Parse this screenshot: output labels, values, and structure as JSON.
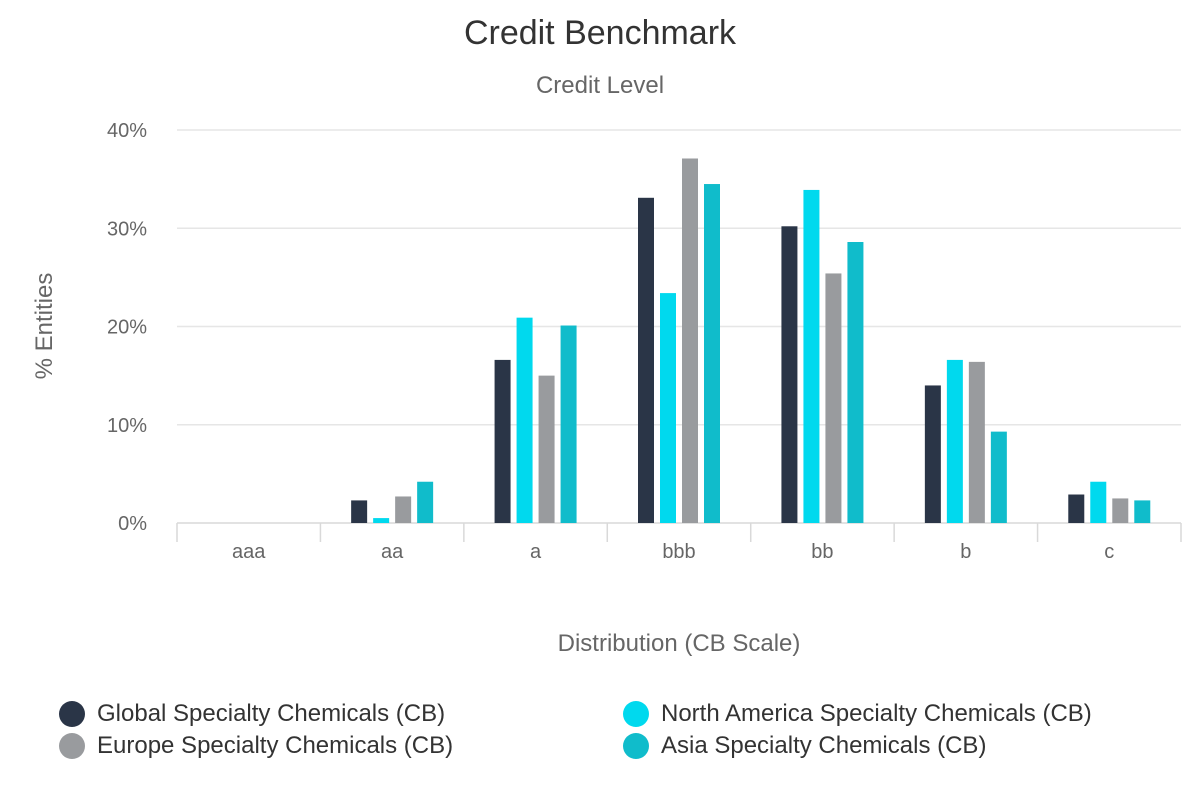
{
  "chart_data": {
    "type": "bar",
    "title": "Credit Benchmark",
    "subtitle": "Credit Level",
    "xlabel": "Distribution (CB Scale)",
    "ylabel": "% Entities",
    "ylim": [
      0,
      40
    ],
    "yticks": [
      "0%",
      "10%",
      "20%",
      "30%",
      "40%"
    ],
    "categories": [
      "aaa",
      "aa",
      "a",
      "bbb",
      "bb",
      "b",
      "c"
    ],
    "grid": true,
    "legend_position": "bottom",
    "series": [
      {
        "name": "Global Specialty Chemicals (CB)",
        "color": "#2a3547",
        "values": [
          0,
          2.3,
          16.6,
          33.1,
          30.2,
          14.0,
          2.9
        ]
      },
      {
        "name": "North America Specialty Chemicals (CB)",
        "color": "#00d9ee",
        "values": [
          0,
          0.5,
          20.9,
          23.4,
          33.9,
          16.6,
          4.2
        ]
      },
      {
        "name": "Europe Specialty Chemicals (CB)",
        "color": "#999b9e",
        "values": [
          0,
          2.7,
          15.0,
          37.1,
          25.4,
          16.4,
          2.5
        ]
      },
      {
        "name": "Asia Specialty Chemicals (CB)",
        "color": "#10bccb",
        "values": [
          0,
          4.2,
          20.1,
          34.5,
          28.6,
          9.3,
          2.3
        ]
      }
    ]
  }
}
